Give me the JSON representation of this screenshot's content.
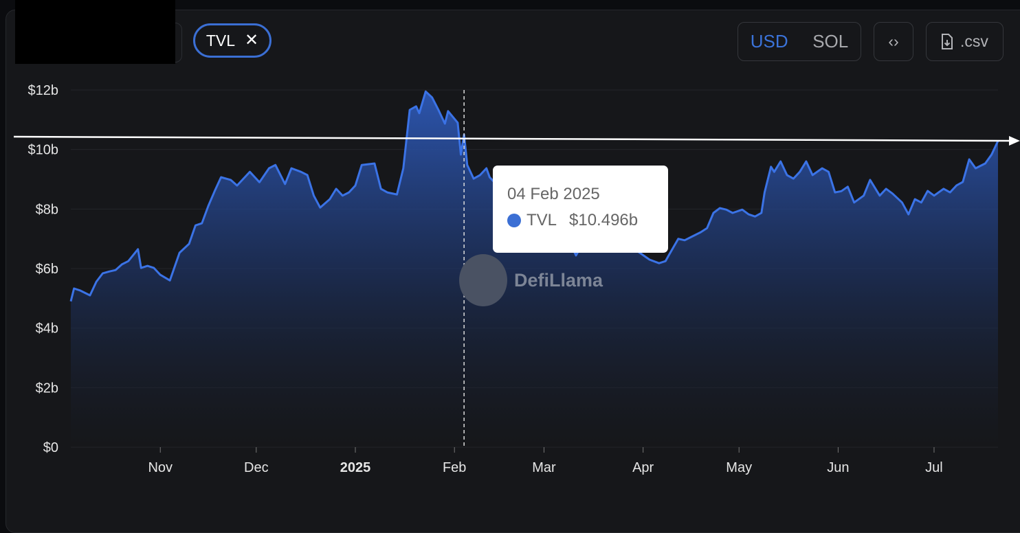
{
  "header": {
    "metric_chip": "TVL",
    "chip_close_icon": "close-icon",
    "currency_options": [
      "USD",
      "SOL"
    ],
    "currency_selected": "USD",
    "embed_icon": "code-icon",
    "csv_label": ".csv",
    "csv_icon": "file-download-icon"
  },
  "tooltip": {
    "date": "04 Feb 2025",
    "series": "TVL",
    "value": "$10.496b"
  },
  "watermark": "DefiLlama",
  "colors": {
    "line": "#3b73e6",
    "accent": "#3b6fd4",
    "grid": "#24262a"
  },
  "chart_data": {
    "type": "area",
    "title": "",
    "xlabel": "",
    "ylabel": "",
    "series": [
      {
        "name": "TVL",
        "unit": "USD billions"
      }
    ],
    "ylim": [
      0,
      12
    ],
    "yticks": [
      {
        "v": 0,
        "label": "$0"
      },
      {
        "v": 2,
        "label": "$2b"
      },
      {
        "v": 4,
        "label": "$4b"
      },
      {
        "v": 6,
        "label": "$6b"
      },
      {
        "v": 8,
        "label": "$8b"
      },
      {
        "v": 10,
        "label": "$10b"
      },
      {
        "v": 12,
        "label": "$12b"
      }
    ],
    "xlim": [
      "2024-10-04",
      "2025-07-21"
    ],
    "xticks": [
      {
        "date": "2024-11-01",
        "label": "Nov",
        "bold": false
      },
      {
        "date": "2024-12-01",
        "label": "Dec",
        "bold": false
      },
      {
        "date": "2025-01-01",
        "label": "2025",
        "bold": true
      },
      {
        "date": "2025-02-01",
        "label": "Feb",
        "bold": false
      },
      {
        "date": "2025-03-01",
        "label": "Mar",
        "bold": false
      },
      {
        "date": "2025-04-01",
        "label": "Apr",
        "bold": false
      },
      {
        "date": "2025-05-01",
        "label": "May",
        "bold": false
      },
      {
        "date": "2025-06-01",
        "label": "Jun",
        "bold": false
      },
      {
        "date": "2025-07-01",
        "label": "Jul",
        "bold": false
      }
    ],
    "grid": true,
    "hover_date": "2025-02-04",
    "reference_line_value": 10.3,
    "points": [
      [
        "2024-10-04",
        4.9
      ],
      [
        "2024-10-05",
        5.33
      ],
      [
        "2024-10-07",
        5.26
      ],
      [
        "2024-10-10",
        5.1
      ],
      [
        "2024-10-12",
        5.56
      ],
      [
        "2024-10-14",
        5.84
      ],
      [
        "2024-10-16",
        5.9
      ],
      [
        "2024-10-18",
        5.95
      ],
      [
        "2024-10-20",
        6.14
      ],
      [
        "2024-10-22",
        6.25
      ],
      [
        "2024-10-25",
        6.65
      ],
      [
        "2024-10-26",
        6.02
      ],
      [
        "2024-10-28",
        6.09
      ],
      [
        "2024-10-30",
        6.02
      ],
      [
        "2024-11-01",
        5.79
      ],
      [
        "2024-11-04",
        5.6
      ],
      [
        "2024-11-07",
        6.53
      ],
      [
        "2024-11-10",
        6.83
      ],
      [
        "2024-11-12",
        7.45
      ],
      [
        "2024-11-14",
        7.52
      ],
      [
        "2024-11-16",
        8.1
      ],
      [
        "2024-11-18",
        8.6
      ],
      [
        "2024-11-20",
        9.07
      ],
      [
        "2024-11-23",
        8.98
      ],
      [
        "2024-11-25",
        8.79
      ],
      [
        "2024-11-27",
        9.02
      ],
      [
        "2024-11-29",
        9.25
      ],
      [
        "2024-12-02",
        8.9
      ],
      [
        "2024-12-05",
        9.37
      ],
      [
        "2024-12-07",
        9.48
      ],
      [
        "2024-12-10",
        8.84
      ],
      [
        "2024-12-12",
        9.37
      ],
      [
        "2024-12-15",
        9.25
      ],
      [
        "2024-12-17",
        9.14
      ],
      [
        "2024-12-19",
        8.45
      ],
      [
        "2024-12-21",
        8.05
      ],
      [
        "2024-12-24",
        8.33
      ],
      [
        "2024-12-26",
        8.68
      ],
      [
        "2024-12-28",
        8.45
      ],
      [
        "2024-12-30",
        8.56
      ],
      [
        "2025-01-01",
        8.79
      ],
      [
        "2025-01-03",
        9.48
      ],
      [
        "2025-01-07",
        9.53
      ],
      [
        "2025-01-09",
        8.68
      ],
      [
        "2025-01-11",
        8.56
      ],
      [
        "2025-01-14",
        8.49
      ],
      [
        "2025-01-16",
        9.37
      ],
      [
        "2025-01-18",
        11.33
      ],
      [
        "2025-01-20",
        11.45
      ],
      [
        "2025-01-21",
        11.22
      ],
      [
        "2025-01-23",
        11.95
      ],
      [
        "2025-01-25",
        11.75
      ],
      [
        "2025-01-27",
        11.33
      ],
      [
        "2025-01-29",
        10.87
      ],
      [
        "2025-01-30",
        11.29
      ],
      [
        "2025-02-02",
        10.9
      ],
      [
        "2025-02-03",
        9.83
      ],
      [
        "2025-02-04",
        10.5
      ],
      [
        "2025-02-05",
        9.48
      ],
      [
        "2025-02-07",
        9.02
      ],
      [
        "2025-02-09",
        9.14
      ],
      [
        "2025-02-11",
        9.37
      ],
      [
        "2025-02-12",
        9.07
      ],
      [
        "2025-02-16",
        8.6
      ],
      [
        "2025-02-20",
        8.2
      ],
      [
        "2025-02-25",
        7.8
      ],
      [
        "2025-03-01",
        7.5
      ],
      [
        "2025-03-05",
        7.2
      ],
      [
        "2025-03-09",
        6.9
      ],
      [
        "2025-03-11",
        6.44
      ],
      [
        "2025-03-14",
        7.0
      ],
      [
        "2025-03-18",
        7.1
      ],
      [
        "2025-03-22",
        6.9
      ],
      [
        "2025-03-26",
        6.7
      ],
      [
        "2025-03-30",
        6.6
      ],
      [
        "2025-04-03",
        6.3
      ],
      [
        "2025-04-06",
        6.18
      ],
      [
        "2025-04-08",
        6.25
      ],
      [
        "2025-04-09",
        6.44
      ],
      [
        "2025-04-12",
        7.0
      ],
      [
        "2025-04-14",
        6.95
      ],
      [
        "2025-04-16",
        7.06
      ],
      [
        "2025-04-19",
        7.22
      ],
      [
        "2025-04-21",
        7.36
      ],
      [
        "2025-04-23",
        7.87
      ],
      [
        "2025-04-25",
        8.03
      ],
      [
        "2025-04-27",
        7.98
      ],
      [
        "2025-04-29",
        7.87
      ],
      [
        "2025-05-02",
        7.98
      ],
      [
        "2025-05-04",
        7.82
      ],
      [
        "2025-05-06",
        7.75
      ],
      [
        "2025-05-08",
        7.87
      ],
      [
        "2025-05-09",
        8.56
      ],
      [
        "2025-05-11",
        9.42
      ],
      [
        "2025-05-12",
        9.25
      ],
      [
        "2025-05-14",
        9.6
      ],
      [
        "2025-05-16",
        9.14
      ],
      [
        "2025-05-18",
        9.02
      ],
      [
        "2025-05-20",
        9.25
      ],
      [
        "2025-05-22",
        9.6
      ],
      [
        "2025-05-24",
        9.14
      ],
      [
        "2025-05-27",
        9.37
      ],
      [
        "2025-05-29",
        9.25
      ],
      [
        "2025-05-31",
        8.56
      ],
      [
        "2025-06-02",
        8.6
      ],
      [
        "2025-06-04",
        8.75
      ],
      [
        "2025-06-06",
        8.22
      ],
      [
        "2025-06-09",
        8.45
      ],
      [
        "2025-06-11",
        8.98
      ],
      [
        "2025-06-14",
        8.45
      ],
      [
        "2025-06-16",
        8.68
      ],
      [
        "2025-06-18",
        8.52
      ],
      [
        "2025-06-21",
        8.22
      ],
      [
        "2025-06-23",
        7.82
      ],
      [
        "2025-06-25",
        8.33
      ],
      [
        "2025-06-27",
        8.22
      ],
      [
        "2025-06-29",
        8.61
      ],
      [
        "2025-07-01",
        8.45
      ],
      [
        "2025-07-04",
        8.68
      ],
      [
        "2025-07-06",
        8.56
      ],
      [
        "2025-07-08",
        8.79
      ],
      [
        "2025-07-10",
        8.91
      ],
      [
        "2025-07-12",
        9.67
      ],
      [
        "2025-07-14",
        9.37
      ],
      [
        "2025-07-17",
        9.53
      ],
      [
        "2025-07-19",
        9.83
      ],
      [
        "2025-07-21",
        10.29
      ]
    ]
  }
}
